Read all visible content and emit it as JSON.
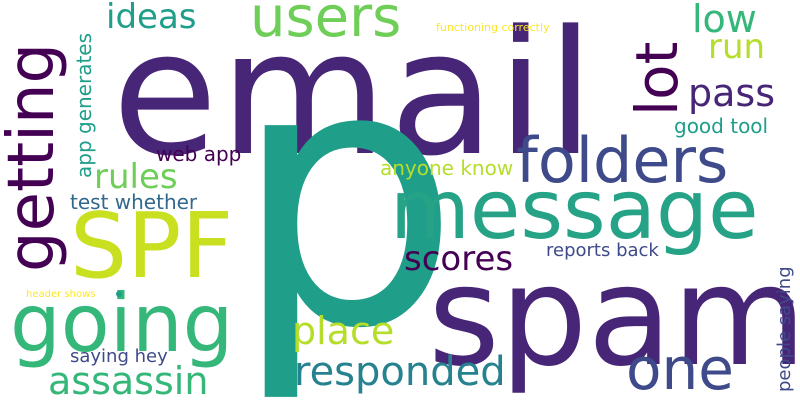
{
  "words": {
    "email": "email",
    "p": "p",
    "spam": "spam",
    "message": "message",
    "folders": "folders",
    "spf": "SPF",
    "going": "going",
    "getting": "getting",
    "users": "users",
    "one": "one",
    "responded": "responded",
    "assassin": "assassin",
    "place": "place",
    "ideas": "ideas",
    "lot": "lot",
    "low": "low",
    "run": "run",
    "pass": "pass",
    "rules": "rules",
    "scores": "scores",
    "good_tool": "good tool",
    "web_app": "web app",
    "anyone_know": "anyone know",
    "test_whether": "test whether",
    "app_generates": "app generates",
    "reports_back": "reports back",
    "saying_hey": "saying hey",
    "people_saying": "people saying",
    "functioning_correctly": "functioning correctly",
    "header_shows": "header shows"
  },
  "colors": {
    "dark_purple": "#440154",
    "indigo": "#482677",
    "slate_blue": "#3e4a89",
    "steel_blue": "#31688e",
    "teal": "#26828e",
    "sea_green": "#1f9e89",
    "green": "#35b779",
    "light_green": "#6ece58",
    "lime": "#b5de2b",
    "yellow": "#fde725"
  }
}
